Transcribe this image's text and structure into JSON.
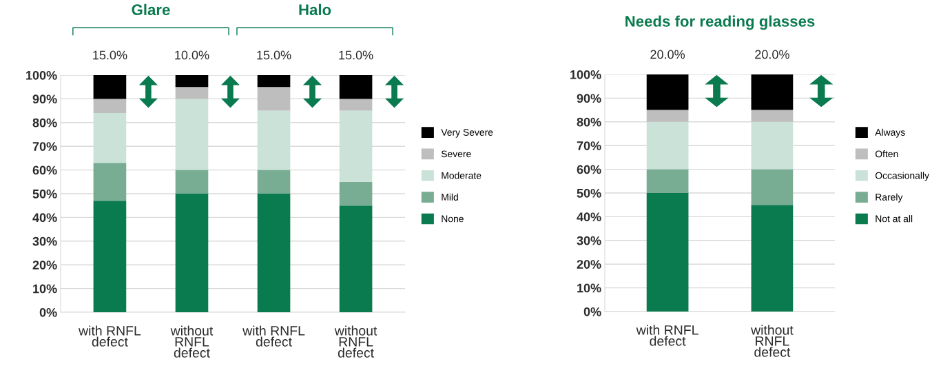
{
  "chart_data": [
    {
      "type": "bar",
      "stacked": true,
      "categories": [
        "with RNFL\ndefect",
        "without\nRNFL\ndefect",
        "with RNFL\ndefect",
        "without\nRNFL\ndefect"
      ],
      "series": [
        {
          "name": "None",
          "color": "#0a7a4f",
          "values": [
            47,
            50,
            50,
            45
          ]
        },
        {
          "name": "Mild",
          "color": "#78ad94",
          "values": [
            16,
            10,
            10,
            10
          ]
        },
        {
          "name": "Moderate",
          "color": "#cbe2d8",
          "values": [
            21,
            30,
            25,
            30
          ]
        },
        {
          "name": "Severe",
          "color": "#bdbebd",
          "values": [
            6,
            5,
            10,
            5
          ]
        },
        {
          "name": "Very Severe",
          "color": "#000000",
          "values": [
            10,
            5,
            5,
            10
          ]
        }
      ],
      "ylim": [
        0,
        100
      ],
      "yticks": [
        {
          "value": 0,
          "label": "0%"
        },
        {
          "value": 10,
          "label": "10%"
        },
        {
          "value": 20,
          "label": "20%"
        },
        {
          "value": 30,
          "label": "30%"
        },
        {
          "value": 40,
          "label": "40%"
        },
        {
          "value": 50,
          "label": "50%"
        },
        {
          "value": 60,
          "label": "60%"
        },
        {
          "value": 70,
          "label": "70%"
        },
        {
          "value": 80,
          "label": "80%"
        },
        {
          "value": 90,
          "label": "90%"
        },
        {
          "value": 100,
          "label": "100%"
        }
      ],
      "annotations": [
        "Glare",
        "Halo",
        "15.0%",
        "10.0%",
        "15.0%",
        "15.0%"
      ],
      "grid": "y",
      "legend": "right"
    },
    {
      "type": "bar",
      "stacked": true,
      "title": "Needs for reading glasses",
      "categories": [
        "with RNFL\ndefect",
        "without\nRNFL\ndefect"
      ],
      "series": [
        {
          "name": "Not at all",
          "color": "#0a7a4f",
          "values": [
            50,
            45
          ]
        },
        {
          "name": "Rarely",
          "color": "#78ad94",
          "values": [
            10,
            15
          ]
        },
        {
          "name": "Occasionally",
          "color": "#cbe2d8",
          "values": [
            20,
            20
          ]
        },
        {
          "name": "Often",
          "color": "#bdbebd",
          "values": [
            5,
            5
          ]
        },
        {
          "name": "Always",
          "color": "#000000",
          "values": [
            15,
            15
          ]
        }
      ],
      "ylim": [
        0,
        100
      ],
      "yticks": [
        {
          "value": 0,
          "label": "0%"
        },
        {
          "value": 10,
          "label": "10%"
        },
        {
          "value": 20,
          "label": "20%"
        },
        {
          "value": 30,
          "label": "30%"
        },
        {
          "value": 40,
          "label": "40%"
        },
        {
          "value": 50,
          "label": "50%"
        },
        {
          "value": 60,
          "label": "60%"
        },
        {
          "value": 70,
          "label": "70%"
        },
        {
          "value": 80,
          "label": "80%"
        },
        {
          "value": 90,
          "label": "90%"
        },
        {
          "value": 100,
          "label": "100%"
        }
      ],
      "annotations": [
        "20.0%",
        "20.0%"
      ],
      "grid": "y",
      "legend": "right"
    }
  ]
}
